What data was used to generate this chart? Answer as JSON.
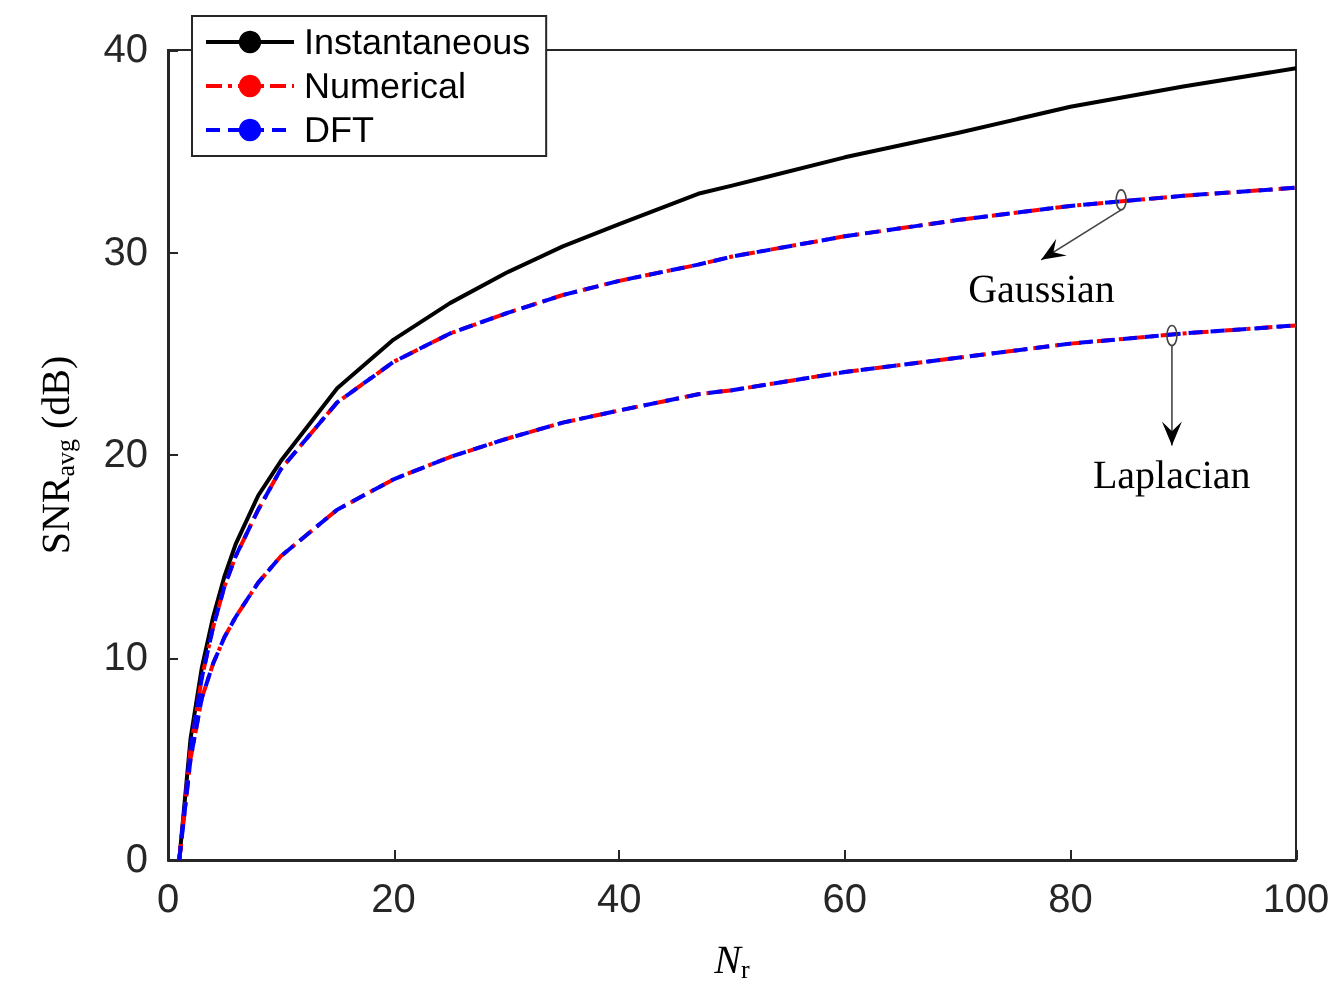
{
  "chart_data": {
    "type": "line",
    "xlabel": "N$_{r}$",
    "ylabel": "SNR$_{avg}$ (dB)",
    "x": [
      1,
      2,
      3,
      4,
      5,
      6,
      8,
      10,
      15,
      20,
      25,
      30,
      35,
      40,
      47,
      50,
      60,
      70,
      80,
      90,
      100
    ],
    "series": [
      {
        "name": "Instantaneous",
        "color": "#000000",
        "line_style": "solid",
        "values": [
          0,
          6,
          9.5,
          12,
          14,
          15.6,
          18,
          19.7,
          23.3,
          25.7,
          27.5,
          29,
          30.3,
          31.4,
          32.9,
          33.3,
          34.7,
          35.9,
          37.2,
          38.2,
          39.1
        ]
      },
      {
        "name": "Numerical",
        "color": "#ff0000",
        "line_style": "dashdot",
        "values": [
          0,
          5.5,
          9,
          11.5,
          13.5,
          15,
          17.3,
          19.3,
          22.6,
          24.6,
          26,
          27,
          27.9,
          28.6,
          29.4,
          29.8,
          30.8,
          31.6,
          32.3,
          32.8,
          33.2
        ]
      },
      {
        "name": "DFT",
        "color": "#0000ff",
        "line_style": "dashed",
        "values": [
          0,
          5.5,
          9,
          11.5,
          13.5,
          15,
          17.3,
          19.3,
          22.6,
          24.6,
          26,
          27,
          27.9,
          28.6,
          29.4,
          29.8,
          30.8,
          31.6,
          32.3,
          32.8,
          33.2
        ]
      },
      {
        "color": "#ff0000",
        "line_style": "dashdot",
        "values": [
          0,
          5,
          8,
          9.7,
          11,
          12,
          13.7,
          15,
          17.3,
          18.8,
          19.9,
          20.8,
          21.6,
          22.2,
          23,
          23.2,
          24.1,
          24.8,
          25.5,
          26,
          26.4
        ]
      },
      {
        "color": "#0000ff",
        "line_style": "dashed",
        "values": [
          0,
          5,
          8,
          9.7,
          11,
          12,
          13.7,
          15,
          17.3,
          18.8,
          19.9,
          20.8,
          21.6,
          22.2,
          23,
          23.2,
          24.1,
          24.8,
          25.5,
          26,
          26.4
        ]
      }
    ],
    "xlim": [
      0,
      100
    ],
    "xticks": [
      0,
      20,
      40,
      60,
      80,
      100
    ],
    "ylim": [
      0,
      40
    ],
    "yticks": [
      0,
      10,
      20,
      30,
      40
    ],
    "grid": false,
    "legend": "top left",
    "marker": "none",
    "annotations": [
      {
        "text": "Gaussian",
        "x": 84.5,
        "y": 32.6
      },
      {
        "text": "Laplacian",
        "x": 89,
        "y": 25.9
      }
    ]
  }
}
